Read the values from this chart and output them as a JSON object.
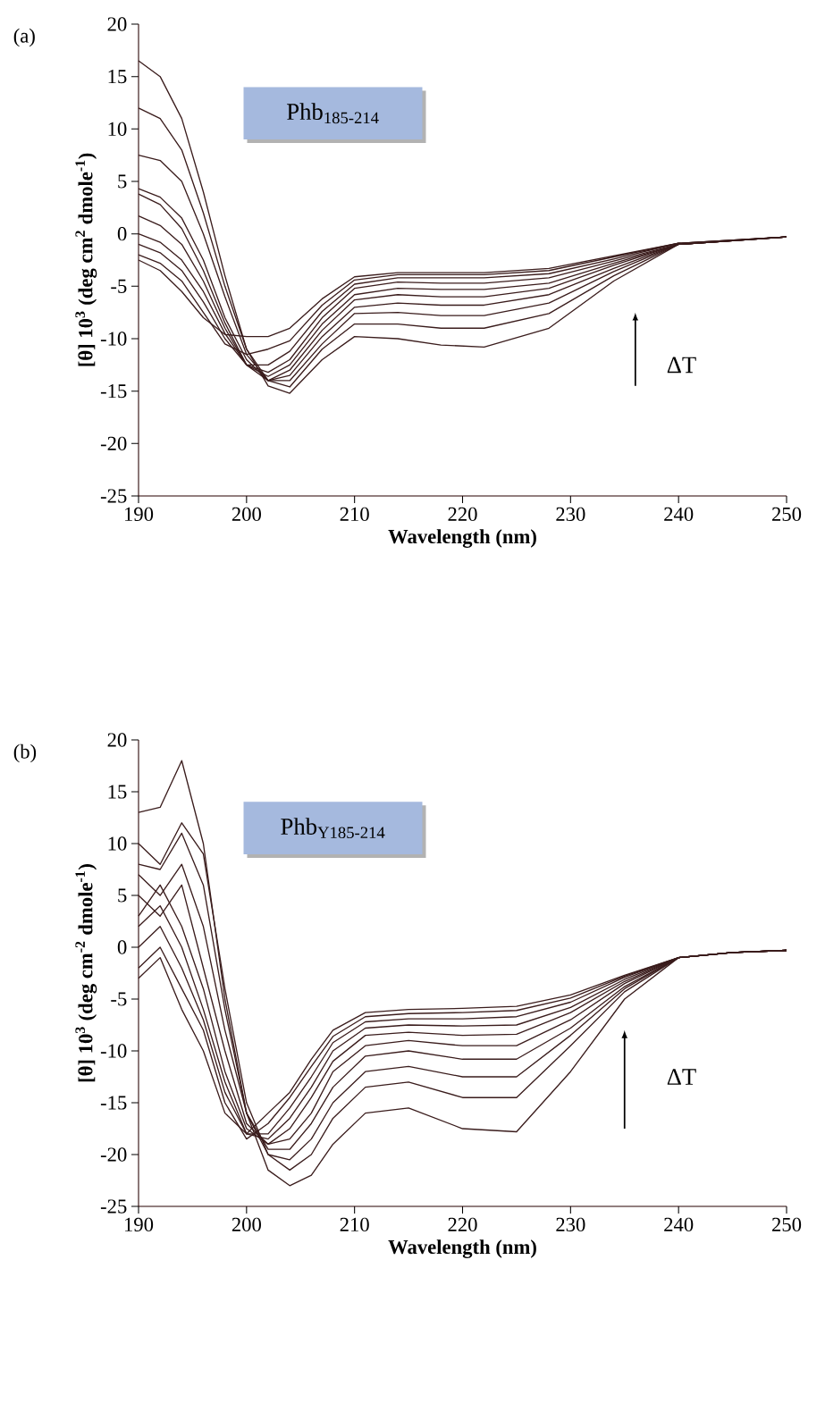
{
  "chart_data": [
    {
      "type": "line",
      "xlabel": "Wavelength (nm)",
      "ylabel": "[θ] 10$^{3}$ (deg cm$^{2}$ dmole$^{-1}$)",
      "xlim": [
        190,
        250
      ],
      "ylim": [
        -25,
        20
      ],
      "xticks": [
        190,
        200,
        210,
        220,
        230,
        240,
        250
      ],
      "yticks": [
        -25,
        -20,
        -15,
        -10,
        -5,
        0,
        5,
        10,
        15,
        20
      ],
      "annotations": [
        "(a)",
        "Phb$_{185-214}$",
        "ΔT"
      ],
      "x": [
        190,
        192,
        194,
        196,
        198,
        200,
        202,
        204,
        207,
        210,
        214,
        218,
        222,
        228,
        234,
        240,
        250
      ],
      "series": [
        {
          "color": "#3a1c1c",
          "values": [
            16.5,
            15,
            11,
            4,
            -4,
            -11,
            -14.5,
            -15.2,
            -12,
            -9.8,
            -10,
            -10.6,
            -10.8,
            -9,
            -4.5,
            -1,
            -0.3
          ]
        },
        {
          "color": "#3a1c1c",
          "values": [
            12,
            11,
            8,
            2,
            -5,
            -11,
            -14,
            -14.6,
            -11,
            -8.6,
            -8.6,
            -9,
            -9,
            -7.6,
            -4,
            -1,
            -0.3
          ]
        },
        {
          "color": "#3a1c1c",
          "values": [
            7.5,
            7,
            5,
            0,
            -6,
            -11.5,
            -14,
            -14,
            -10.5,
            -7.6,
            -7.5,
            -7.8,
            -7.8,
            -6.6,
            -3.6,
            -1,
            -0.3
          ]
        },
        {
          "color": "#3a1c1c",
          "values": [
            4.3,
            3.5,
            1.5,
            -2.5,
            -8,
            -12,
            -14,
            -13.5,
            -9.8,
            -7,
            -6.6,
            -6.8,
            -6.8,
            -5.8,
            -3.3,
            -1,
            -0.3
          ]
        },
        {
          "color": "#3a1c1c",
          "values": [
            3.8,
            2.8,
            0.5,
            -3.5,
            -8.5,
            -12.5,
            -14,
            -13,
            -9.2,
            -6.3,
            -5.8,
            -6,
            -6,
            -5.2,
            -3,
            -1,
            -0.3
          ]
        },
        {
          "color": "#3a1c1c",
          "values": [
            1.7,
            0.8,
            -1,
            -4.5,
            -9,
            -12.5,
            -13.6,
            -12.5,
            -8.6,
            -5.8,
            -5.2,
            -5.3,
            -5.3,
            -4.7,
            -2.8,
            -1,
            -0.3
          ]
        },
        {
          "color": "#3a1c1c",
          "values": [
            0,
            -0.8,
            -2.5,
            -5.5,
            -9.5,
            -12.5,
            -13.2,
            -12,
            -8,
            -5.2,
            -4.6,
            -4.7,
            -4.7,
            -4.2,
            -2.6,
            -1,
            -0.3
          ]
        },
        {
          "color": "#3a1c1c",
          "values": [
            -1,
            -1.8,
            -3.5,
            -6.5,
            -10,
            -12.5,
            -12.5,
            -11.2,
            -7.4,
            -4.8,
            -4.2,
            -4.2,
            -4.2,
            -3.8,
            -2.4,
            -0.9,
            -0.3
          ]
        },
        {
          "color": "#3a1c1c",
          "values": [
            -2,
            -2.8,
            -4.5,
            -7.5,
            -10.5,
            -11.5,
            -11,
            -10.2,
            -6.8,
            -4.4,
            -3.9,
            -3.9,
            -3.9,
            -3.5,
            -2.2,
            -0.9,
            -0.3
          ]
        },
        {
          "color": "#3a1c1c",
          "values": [
            -2.5,
            -3.5,
            -5.5,
            -8,
            -9.6,
            -9.8,
            -9.8,
            -9,
            -6.2,
            -4.1,
            -3.7,
            -3.7,
            -3.7,
            -3.3,
            -2.1,
            -0.9,
            -0.3
          ]
        }
      ]
    },
    {
      "type": "line",
      "xlabel": "Wavelength (nm)",
      "ylabel": "[θ] 10$^{3}$ (deg cm$^{-2}$ dmole$^{-1}$)",
      "xlim": [
        190,
        250
      ],
      "ylim": [
        -25,
        20
      ],
      "xticks": [
        190,
        200,
        210,
        220,
        230,
        240,
        250
      ],
      "yticks": [
        -25,
        -20,
        -15,
        -10,
        -5,
        0,
        5,
        10,
        15,
        20
      ],
      "annotations": [
        "(b)",
        "Phb$_{Y185-214}$",
        "ΔT"
      ],
      "x": [
        190,
        192,
        194,
        196,
        198,
        200,
        202,
        204,
        206,
        208,
        211,
        215,
        220,
        225,
        230,
        235,
        240,
        245,
        250
      ],
      "series": [
        {
          "color": "#3a1c1c",
          "values": [
            13,
            13.5,
            18,
            10,
            -5,
            -16,
            -21.5,
            -23,
            -22,
            -19,
            -16,
            -15.5,
            -17.5,
            -17.8,
            -12,
            -5,
            -1,
            -0.5,
            -0.3
          ]
        },
        {
          "color": "#3a1c1c",
          "values": [
            10,
            8,
            12,
            9,
            -4,
            -15,
            -20,
            -21.5,
            -20,
            -16.5,
            -13.5,
            -13,
            -14.5,
            -14.5,
            -9.5,
            -4.3,
            -1,
            -0.5,
            -0.3
          ]
        },
        {
          "color": "#3a1c1c",
          "values": [
            8,
            7.5,
            11,
            6,
            -6,
            -16,
            -20,
            -20.5,
            -18.5,
            -15,
            -12,
            -11.5,
            -12.5,
            -12.5,
            -8.5,
            -4,
            -1,
            -0.5,
            -0.3
          ]
        },
        {
          "color": "#3a1c1c",
          "values": [
            7,
            5,
            8,
            2,
            -8,
            -16,
            -19.5,
            -19.5,
            -17,
            -13.5,
            -10.5,
            -10,
            -10.8,
            -10.8,
            -7.8,
            -3.8,
            -1,
            -0.5,
            -0.3
          ]
        },
        {
          "color": "#3a1c1c",
          "values": [
            5,
            3,
            6,
            -2,
            -10,
            -17,
            -19,
            -18.5,
            -16,
            -12,
            -9.5,
            -9,
            -9.5,
            -9.5,
            -7,
            -3.5,
            -1,
            -0.5,
            -0.3
          ]
        },
        {
          "color": "#3a1c1c",
          "values": [
            3,
            6,
            2,
            -4,
            -12,
            -17.5,
            -19,
            -17.5,
            -14.5,
            -11,
            -8.5,
            -8.2,
            -8.5,
            -8.4,
            -6.3,
            -3.3,
            -1,
            -0.5,
            -0.3
          ]
        },
        {
          "color": "#3a1c1c",
          "values": [
            2,
            4,
            0,
            -6,
            -13,
            -18,
            -18.5,
            -16.5,
            -13.5,
            -10,
            -7.8,
            -7.5,
            -7.6,
            -7.5,
            -5.8,
            -3.1,
            -1,
            -0.5,
            -0.3
          ]
        },
        {
          "color": "#3a1c1c",
          "values": [
            0,
            2,
            -2,
            -7,
            -14,
            -18,
            -18,
            -15.5,
            -12.5,
            -9.2,
            -7.2,
            -6.9,
            -6.9,
            -6.7,
            -5.3,
            -2.9,
            -1,
            -0.5,
            -0.3
          ]
        },
        {
          "color": "#3a1c1c",
          "values": [
            -2,
            0,
            -4,
            -8,
            -15,
            -18.5,
            -17,
            -14.5,
            -11.5,
            -8.6,
            -6.7,
            -6.4,
            -6.3,
            -6.1,
            -4.9,
            -2.8,
            -1,
            -0.5,
            -0.3
          ]
        },
        {
          "color": "#3a1c1c",
          "values": [
            -3,
            -1,
            -6,
            -10,
            -16,
            -18,
            -16,
            -14,
            -10.8,
            -8,
            -6.3,
            -6,
            -5.9,
            -5.7,
            -4.6,
            -2.7,
            -1,
            -0.5,
            -0.3
          ]
        }
      ]
    }
  ]
}
